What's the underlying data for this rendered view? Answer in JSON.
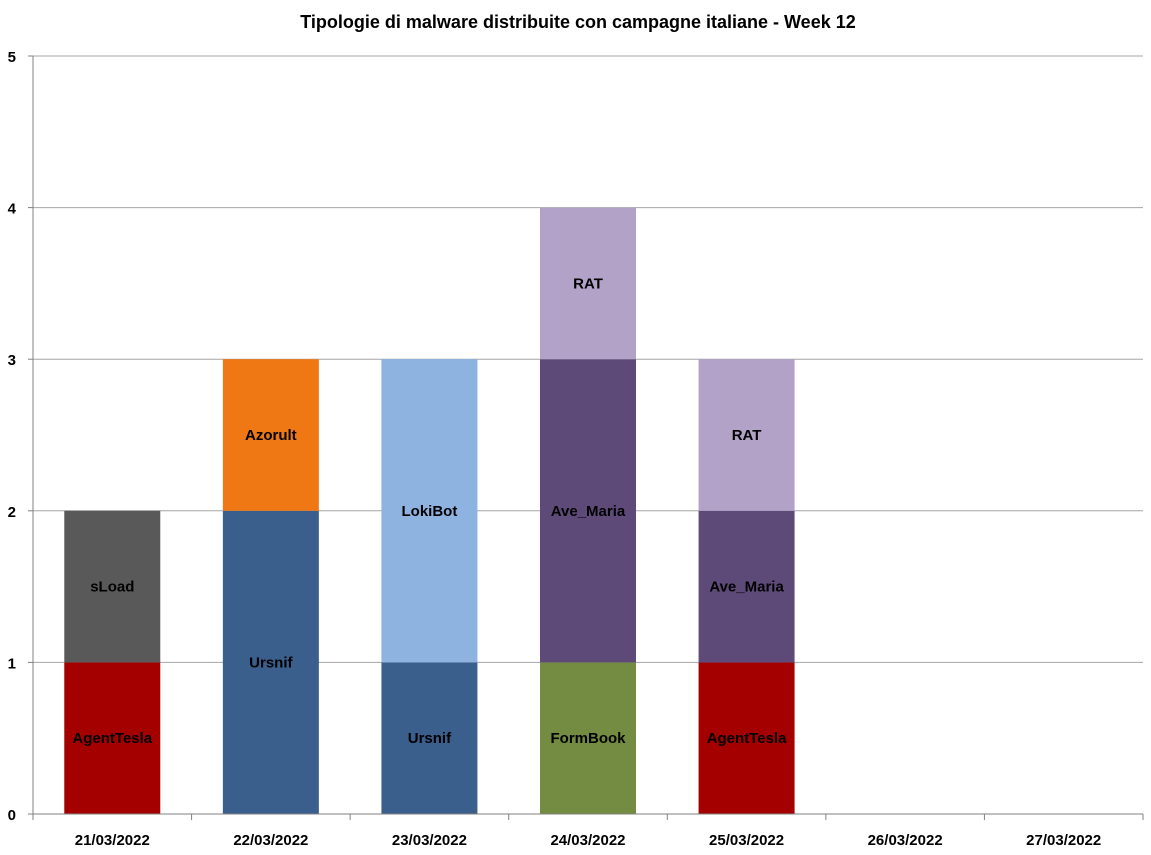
{
  "chart_data": {
    "type": "bar",
    "stacked": true,
    "title": "Tipologie  di malware distribuite con campagne italiane - Week 12",
    "xlabel": "",
    "ylabel": "",
    "ylim": [
      0,
      5
    ],
    "y_ticks": [
      0,
      1,
      2,
      3,
      4,
      5
    ],
    "grid": true,
    "legend": "none",
    "categories": [
      "21/03/2022",
      "22/03/2022",
      "23/03/2022",
      "24/03/2022",
      "25/03/2022",
      "26/03/2022",
      "27/03/2022"
    ],
    "bars": [
      {
        "category": "21/03/2022",
        "segments": [
          {
            "label": "AgentTesla",
            "value": 1,
            "color": "#A50000"
          },
          {
            "label": "sLoad",
            "value": 1,
            "color": "#595959"
          }
        ]
      },
      {
        "category": "22/03/2022",
        "segments": [
          {
            "label": "Ursnif",
            "value": 2,
            "color": "#3A5F8C"
          },
          {
            "label": "Azorult",
            "value": 1,
            "color": "#F07814"
          }
        ]
      },
      {
        "category": "23/03/2022",
        "segments": [
          {
            "label": "Ursnif",
            "value": 1,
            "color": "#3A5F8C"
          },
          {
            "label": "LokiBot",
            "value": 2,
            "color": "#8EB3E1"
          }
        ]
      },
      {
        "category": "24/03/2022",
        "segments": [
          {
            "label": "FormBook",
            "value": 1,
            "color": "#748B42"
          },
          {
            "label": "Ave_Maria",
            "value": 2,
            "color": "#5E4A78"
          },
          {
            "label": "RAT",
            "value": 1,
            "color": "#B2A2C8"
          }
        ]
      },
      {
        "category": "25/03/2022",
        "segments": [
          {
            "label": "AgentTesla",
            "value": 1,
            "color": "#A50000"
          },
          {
            "label": "Ave_Maria",
            "value": 1,
            "color": "#5E4A78"
          },
          {
            "label": "RAT",
            "value": 1,
            "color": "#B2A2C8"
          }
        ]
      },
      {
        "category": "26/03/2022",
        "segments": []
      },
      {
        "category": "27/03/2022",
        "segments": []
      }
    ],
    "colors": {
      "grid": "#A6A6A6",
      "axis": "#808080"
    }
  }
}
